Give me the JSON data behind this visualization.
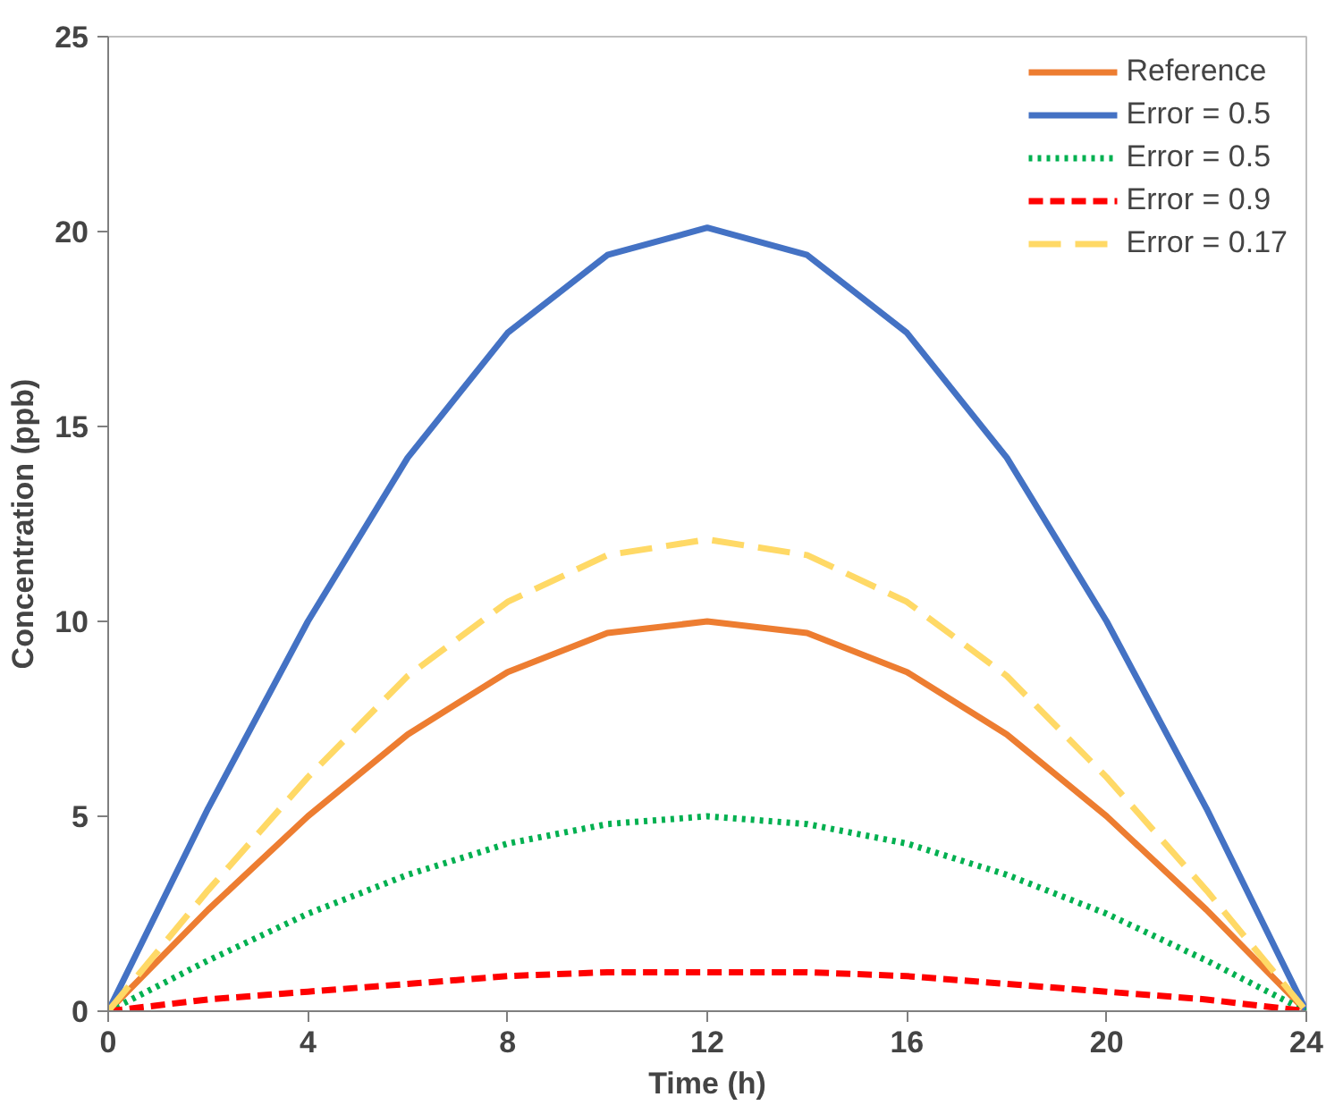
{
  "chart_data": {
    "type": "line",
    "xlabel": "Time (h)",
    "ylabel": "Concentration (ppb)",
    "x": [
      0,
      2,
      4,
      6,
      8,
      10,
      12,
      14,
      16,
      18,
      20,
      22,
      24
    ],
    "xlim": [
      0,
      24
    ],
    "xticks": [
      0,
      4,
      8,
      12,
      16,
      20,
      24
    ],
    "ylim": [
      0,
      25
    ],
    "yticks": [
      0,
      5,
      10,
      15,
      20,
      25
    ],
    "grid": false,
    "legend": "top right",
    "marker": "none",
    "series": [
      {
        "name": "Reference",
        "color": "#ed7d31",
        "line_style": "solid",
        "values": [
          0,
          2.6,
          5,
          7.1,
          8.7,
          9.7,
          10,
          9.7,
          8.7,
          7.1,
          5,
          2.6,
          0
        ]
      },
      {
        "name": "Error = 0.5",
        "color": "#4472c4",
        "line_style": "solid",
        "values": [
          0,
          5.2,
          10,
          14.2,
          17.4,
          19.4,
          20.1,
          19.4,
          17.4,
          14.2,
          10,
          5.2,
          0
        ]
      },
      {
        "name": "Error = 0.5",
        "color": "#00b050",
        "line_style": "dotted",
        "values": [
          0,
          1.3,
          2.5,
          3.5,
          4.3,
          4.8,
          5,
          4.8,
          4.3,
          3.5,
          2.5,
          1.3,
          0
        ]
      },
      {
        "name": "Error = 0.9",
        "color": "#ff0000",
        "line_style": "dashed",
        "values": [
          0,
          0.3,
          0.5,
          0.7,
          0.9,
          1.0,
          1.0,
          1.0,
          0.9,
          0.7,
          0.5,
          0.3,
          0
        ]
      },
      {
        "name": "Error = 0.17",
        "color": "#ffd966",
        "line_style": "longdash",
        "values": [
          0,
          3.1,
          6,
          8.6,
          10.5,
          11.7,
          12.1,
          11.7,
          10.5,
          8.6,
          6,
          3.1,
          0
        ]
      }
    ]
  }
}
